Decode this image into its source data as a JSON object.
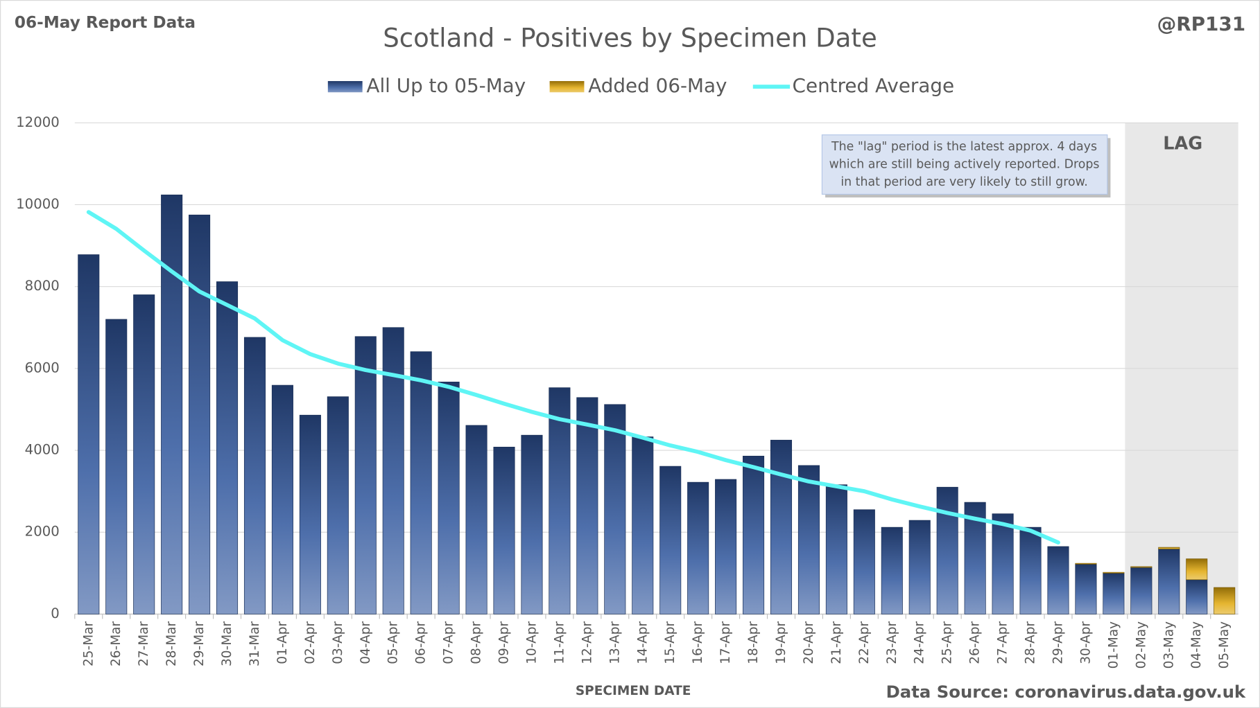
{
  "chart_data": {
    "type": "stacked_bar_line",
    "title": "Scotland - Positives by Specimen Date",
    "report_label": "06-May Report Data",
    "handle": "@RP131",
    "source": "Data Source: coronavirus.data.gov.uk",
    "x_label": "SPECIMEN DATE",
    "categories": [
      "25-Mar",
      "26-Mar",
      "27-Mar",
      "28-Mar",
      "29-Mar",
      "30-Mar",
      "31-Mar",
      "01-Apr",
      "02-Apr",
      "03-Apr",
      "04-Apr",
      "05-Apr",
      "06-Apr",
      "07-Apr",
      "08-Apr",
      "09-Apr",
      "10-Apr",
      "11-Apr",
      "12-Apr",
      "13-Apr",
      "14-Apr",
      "15-Apr",
      "16-Apr",
      "17-Apr",
      "18-Apr",
      "19-Apr",
      "20-Apr",
      "21-Apr",
      "22-Apr",
      "23-Apr",
      "24-Apr",
      "25-Apr",
      "26-Apr",
      "27-Apr",
      "28-Apr",
      "29-Apr",
      "30-Apr",
      "01-May",
      "02-May",
      "03-May",
      "04-May",
      "05-May"
    ],
    "series": [
      {
        "name": "All Up to 05-May",
        "color": "#2f559c",
        "kind": "bar",
        "values": [
          8780,
          7200,
          7800,
          10240,
          9750,
          8120,
          6760,
          5590,
          4860,
          5310,
          6780,
          7000,
          6410,
          5670,
          4610,
          4080,
          4370,
          5530,
          5290,
          5120,
          4330,
          3610,
          3220,
          3290,
          3860,
          4250,
          3630,
          3160,
          2550,
          2120,
          2290,
          3100,
          2730,
          2450,
          2120,
          1650,
          1220,
          1000,
          1140,
          1590,
          840,
          0
        ]
      },
      {
        "name": "Added 06-May",
        "color": "#e0a80c",
        "kind": "bar",
        "values": [
          0,
          0,
          0,
          0,
          0,
          0,
          0,
          0,
          0,
          0,
          0,
          0,
          0,
          0,
          0,
          0,
          0,
          0,
          0,
          0,
          0,
          0,
          0,
          0,
          0,
          0,
          0,
          0,
          0,
          0,
          0,
          0,
          0,
          0,
          0,
          0,
          20,
          20,
          20,
          40,
          510,
          650
        ]
      },
      {
        "name": "Centred Average",
        "color": "#5ff5f5",
        "kind": "line",
        "values": [
          9820,
          9410,
          8880,
          8370,
          7880,
          7550,
          7220,
          6690,
          6350,
          6120,
          5960,
          5840,
          5710,
          5550,
          5350,
          5140,
          4940,
          4760,
          4630,
          4490,
          4310,
          4120,
          3960,
          3760,
          3590,
          3410,
          3240,
          3120,
          3000,
          2800,
          2630,
          2470,
          2330,
          2200,
          2040,
          1750,
          null,
          null,
          null,
          null,
          null,
          null
        ]
      }
    ],
    "ylim": [
      0,
      12000
    ],
    "yticks": [
      0,
      2000,
      4000,
      6000,
      8000,
      10000,
      12000
    ],
    "grid": true,
    "lag": {
      "label": "LAG",
      "from": "02-May",
      "to": "05-May"
    },
    "annotation": [
      "The \"lag\" period is the latest approx. 4 days",
      "which are still being actively reported.  Drops",
      "in that period are very likely to still grow."
    ]
  }
}
